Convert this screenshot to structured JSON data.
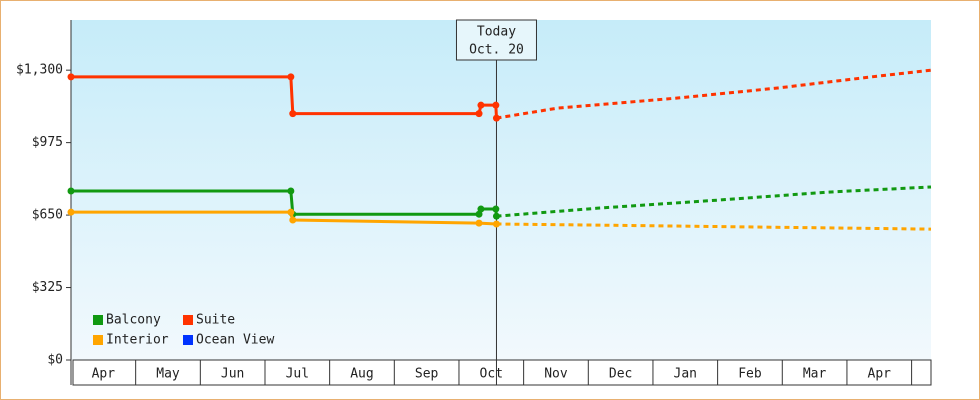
{
  "chart_data": {
    "type": "line",
    "xlim": [
      0,
      13.3
    ],
    "ylim": [
      0,
      1525
    ],
    "xticks": [
      {
        "value": 0.5,
        "label": "Apr"
      },
      {
        "value": 1.5,
        "label": "May"
      },
      {
        "value": 2.5,
        "label": "Jun"
      },
      {
        "value": 3.5,
        "label": "Jul"
      },
      {
        "value": 4.5,
        "label": "Aug"
      },
      {
        "value": 5.5,
        "label": "Sep"
      },
      {
        "value": 6.5,
        "label": "Oct"
      },
      {
        "value": 7.5,
        "label": "Nov"
      },
      {
        "value": 8.5,
        "label": "Dec"
      },
      {
        "value": 9.5,
        "label": "Jan"
      },
      {
        "value": 10.5,
        "label": "Feb"
      },
      {
        "value": 11.5,
        "label": "Mar"
      },
      {
        "value": 12.5,
        "label": "Apr"
      }
    ],
    "yticks": [
      {
        "value": 0,
        "label": "$0"
      },
      {
        "value": 325,
        "label": "$325"
      },
      {
        "value": 650,
        "label": "$650"
      },
      {
        "value": 975,
        "label": "$975"
      },
      {
        "value": 1300,
        "label": "$1,300"
      }
    ],
    "today": {
      "x": 6.58,
      "label": "Today",
      "date": "Oct. 20"
    },
    "legend": "lower left",
    "series": [
      {
        "name": "Balcony",
        "color": "#119911",
        "x": [
          0,
          3.4,
          3.43,
          6.31,
          6.34,
          6.57,
          6.58,
          8.15,
          10.0,
          11.7,
          13.3
        ],
        "values": [
          758,
          758,
          654,
          654,
          677,
          677,
          645,
          681,
          717,
          753,
          776
        ]
      },
      {
        "name": "Suite",
        "color": "#ff3300",
        "x": [
          0,
          3.4,
          3.43,
          6.31,
          6.34,
          6.57,
          6.58,
          7.53,
          9.38,
          10.93,
          12.47,
          13.3
        ],
        "values": [
          1270,
          1270,
          1105,
          1105,
          1143,
          1143,
          1085,
          1130,
          1175,
          1220,
          1273,
          1300
        ]
      },
      {
        "name": "Interior",
        "color": "#ffa500",
        "x": [
          0,
          3.4,
          3.43,
          6.31,
          6.58,
          8.15,
          13.3
        ],
        "values": [
          663,
          663,
          628,
          614,
          610,
          605,
          587
        ]
      },
      {
        "name": "Ocean View",
        "color": "#0033ff",
        "x": [],
        "values": []
      }
    ]
  }
}
